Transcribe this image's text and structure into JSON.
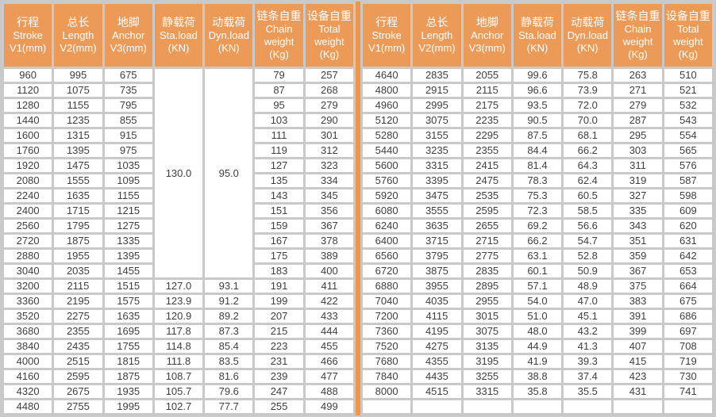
{
  "colors": {
    "header_orange": "#EC9A57",
    "divider_orange": "#F09646",
    "grid_gray": "#C9C9C9",
    "cell_white": "#FFFFFF",
    "text_dark": "#3F3F3F"
  },
  "chart_data": {
    "type": "table",
    "columns": [
      {
        "cn": "行程",
        "en": "Stroke",
        "unit": "V1(mm)"
      },
      {
        "cn": "总长",
        "en": "Length",
        "unit": "V2(mm)"
      },
      {
        "cn": "地脚",
        "en": "Anchor",
        "unit": "V3(mm)"
      },
      {
        "cn": "静载荷",
        "en": "Sta.load",
        "unit": "(KN)"
      },
      {
        "cn": "动载荷",
        "en": "Dyn.load",
        "unit": "(KN)"
      },
      {
        "cn": "链条自重",
        "en": "Chain weight",
        "unit": "(Kg)"
      },
      {
        "cn": "设备自重",
        "en": "Total weight",
        "unit": "(Kg)"
      }
    ],
    "left_merged": {
      "row_start": 0,
      "row_count": 14,
      "sta_load": "130.0",
      "dyn_load": "95.0"
    },
    "left_rows": [
      [
        "960",
        "995",
        "675",
        null,
        null,
        "79",
        "257"
      ],
      [
        "1120",
        "1075",
        "735",
        null,
        null,
        "87",
        "268"
      ],
      [
        "1280",
        "1155",
        "795",
        null,
        null,
        "95",
        "279"
      ],
      [
        "1440",
        "1235",
        "855",
        null,
        null,
        "103",
        "290"
      ],
      [
        "1600",
        "1315",
        "915",
        null,
        null,
        "111",
        "301"
      ],
      [
        "1760",
        "1395",
        "975",
        null,
        null,
        "119",
        "312"
      ],
      [
        "1920",
        "1475",
        "1035",
        null,
        null,
        "127",
        "323"
      ],
      [
        "2080",
        "1555",
        "1095",
        null,
        null,
        "135",
        "334"
      ],
      [
        "2240",
        "1635",
        "1155",
        null,
        null,
        "143",
        "345"
      ],
      [
        "2400",
        "1715",
        "1215",
        null,
        null,
        "151",
        "356"
      ],
      [
        "2560",
        "1795",
        "1275",
        null,
        null,
        "159",
        "367"
      ],
      [
        "2720",
        "1875",
        "1335",
        null,
        null,
        "167",
        "378"
      ],
      [
        "2880",
        "1955",
        "1395",
        null,
        null,
        "175",
        "389"
      ],
      [
        "3040",
        "2035",
        "1455",
        null,
        null,
        "183",
        "400"
      ],
      [
        "3200",
        "2115",
        "1515",
        "127.0",
        "93.1",
        "191",
        "411"
      ],
      [
        "3360",
        "2195",
        "1575",
        "123.9",
        "91.2",
        "199",
        "422"
      ],
      [
        "3520",
        "2275",
        "1635",
        "120.9",
        "89.2",
        "207",
        "433"
      ],
      [
        "3680",
        "2355",
        "1695",
        "117.8",
        "87.3",
        "215",
        "444"
      ],
      [
        "3840",
        "2435",
        "1755",
        "114.8",
        "85.4",
        "223",
        "455"
      ],
      [
        "4000",
        "2515",
        "1815",
        "111.8",
        "83.5",
        "231",
        "466"
      ],
      [
        "4160",
        "2595",
        "1875",
        "108.7",
        "81.6",
        "239",
        "477"
      ],
      [
        "4320",
        "2675",
        "1935",
        "105.7",
        "79.6",
        "247",
        "488"
      ],
      [
        "4480",
        "2755",
        "1995",
        "102.7",
        "77.7",
        "255",
        "499"
      ]
    ],
    "right_rows": [
      [
        "4640",
        "2835",
        "2055",
        "99.6",
        "75.8",
        "263",
        "510"
      ],
      [
        "4800",
        "2915",
        "2115",
        "96.6",
        "73.9",
        "271",
        "521"
      ],
      [
        "4960",
        "2995",
        "2175",
        "93.5",
        "72.0",
        "279",
        "532"
      ],
      [
        "5120",
        "3075",
        "2235",
        "90.5",
        "70.0",
        "287",
        "543"
      ],
      [
        "5280",
        "3155",
        "2295",
        "87.5",
        "68.1",
        "295",
        "554"
      ],
      [
        "5440",
        "3235",
        "2355",
        "84.4",
        "66.2",
        "303",
        "565"
      ],
      [
        "5600",
        "3315",
        "2415",
        "81.4",
        "64.3",
        "311",
        "576"
      ],
      [
        "5760",
        "3395",
        "2475",
        "78.3",
        "62.4",
        "319",
        "587"
      ],
      [
        "5920",
        "3475",
        "2535",
        "75.3",
        "60.5",
        "327",
        "598"
      ],
      [
        "6080",
        "3555",
        "2595",
        "72.3",
        "58.5",
        "335",
        "609"
      ],
      [
        "6240",
        "3635",
        "2655",
        "69.2",
        "56.6",
        "343",
        "620"
      ],
      [
        "6400",
        "3715",
        "2715",
        "66.2",
        "54.7",
        "351",
        "631"
      ],
      [
        "6560",
        "3795",
        "2775",
        "63.1",
        "52.8",
        "359",
        "642"
      ],
      [
        "6720",
        "3875",
        "2835",
        "60.1",
        "50.9",
        "367",
        "653"
      ],
      [
        "6880",
        "3955",
        "2895",
        "57.1",
        "48.9",
        "375",
        "664"
      ],
      [
        "7040",
        "4035",
        "2955",
        "54.0",
        "47.0",
        "383",
        "675"
      ],
      [
        "7200",
        "4115",
        "3015",
        "51.0",
        "45.1",
        "391",
        "686"
      ],
      [
        "7360",
        "4195",
        "3075",
        "48.0",
        "43.2",
        "399",
        "697"
      ],
      [
        "7520",
        "4275",
        "3135",
        "44.9",
        "41.3",
        "407",
        "708"
      ],
      [
        "7680",
        "4355",
        "3195",
        "41.9",
        "39.3",
        "415",
        "719"
      ],
      [
        "7840",
        "4435",
        "3255",
        "38.8",
        "37.4",
        "423",
        "730"
      ],
      [
        "8000",
        "4515",
        "3315",
        "35.8",
        "35.5",
        "431",
        "741"
      ],
      [
        "",
        "",
        "",
        "",
        "",
        "",
        ""
      ]
    ]
  }
}
